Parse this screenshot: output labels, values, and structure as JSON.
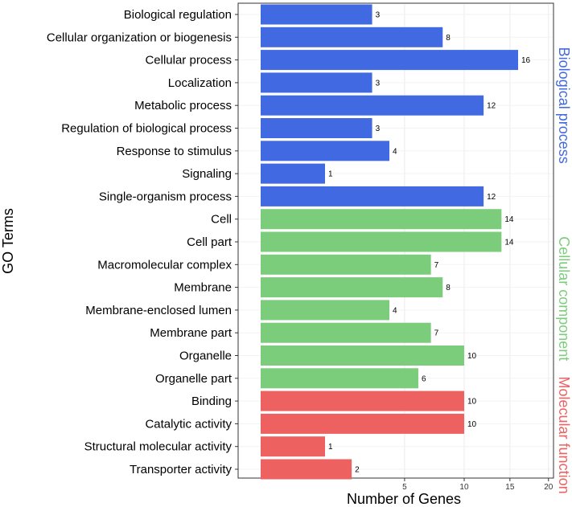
{
  "chart_data": {
    "type": "bar",
    "orientation": "horizontal",
    "xlabel": "Number of Genes",
    "ylabel": "GO Terms",
    "xlim": [
      0,
      20
    ],
    "x_scale": "sqrt",
    "x_ticks": [
      5,
      10,
      15,
      20
    ],
    "grid": true,
    "groups": [
      {
        "name": "Biological process",
        "color": "#4169E1",
        "items": [
          {
            "label": "Biological regulation",
            "value": 3
          },
          {
            "label": "Cellular organization or biogenesis",
            "value": 8
          },
          {
            "label": "Cellular process",
            "value": 16
          },
          {
            "label": "Localization",
            "value": 3
          },
          {
            "label": "Metabolic process",
            "value": 12
          },
          {
            "label": "Regulation of biological process",
            "value": 3
          },
          {
            "label": "Response to stimulus",
            "value": 4
          },
          {
            "label": "Signaling",
            "value": 1
          },
          {
            "label": "Single-organism process",
            "value": 12
          }
        ]
      },
      {
        "name": "Cellular component",
        "color": "#7BCD7B",
        "items": [
          {
            "label": "Cell",
            "value": 14
          },
          {
            "label": "Cell part",
            "value": 14
          },
          {
            "label": "Macromolecular complex",
            "value": 7
          },
          {
            "label": "Membrane",
            "value": 8
          },
          {
            "label": "Membrane-enclosed lumen",
            "value": 4
          },
          {
            "label": "Membrane part",
            "value": 7
          },
          {
            "label": "Organelle",
            "value": 10
          },
          {
            "label": "Organelle part",
            "value": 6
          }
        ]
      },
      {
        "name": "Molecular function",
        "color": "#EE6161",
        "items": [
          {
            "label": "Binding",
            "value": 10
          },
          {
            "label": "Catalytic activity",
            "value": 10
          },
          {
            "label": "Structural molecular activity",
            "value": 1
          },
          {
            "label": "Transporter activity",
            "value": 2
          }
        ]
      }
    ]
  }
}
